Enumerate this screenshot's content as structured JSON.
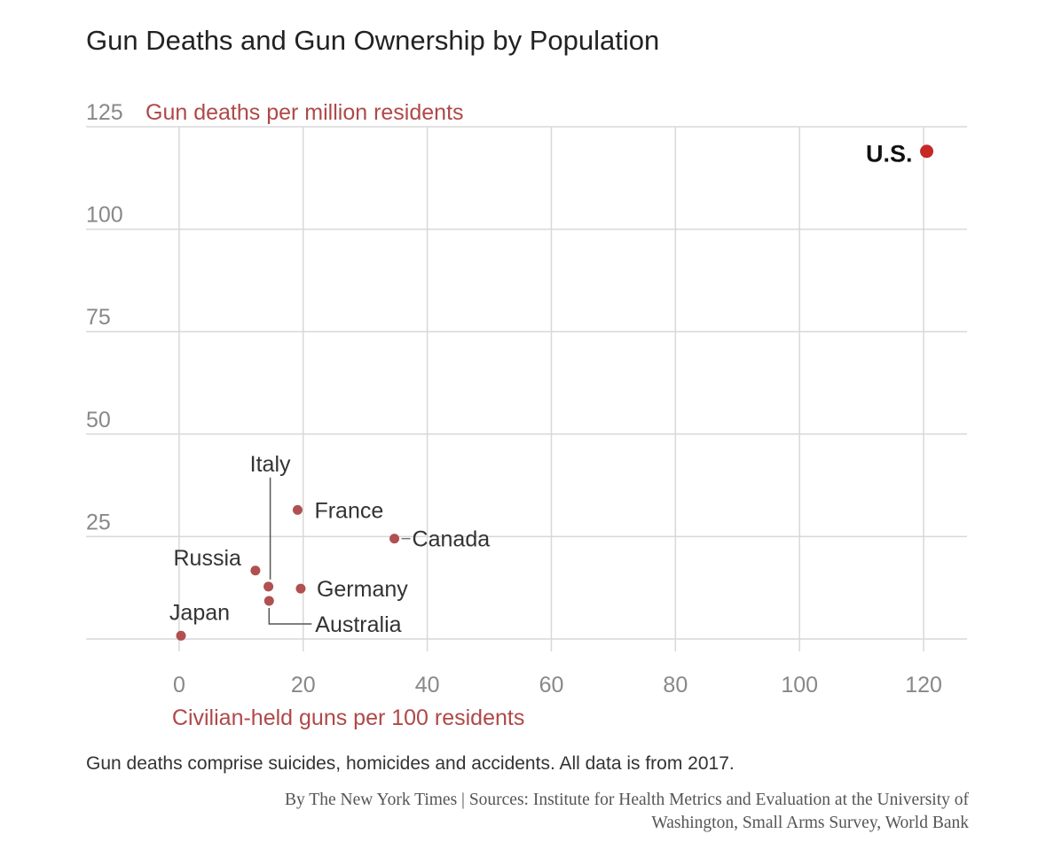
{
  "page": {
    "title": "Gun Deaths and Gun Ownership by Population",
    "note": "Gun deaths comprise suicides, homicides and accidents. All data is from 2017.",
    "source_line1": "By The New York Times | Sources: Institute for Health Metrics and Evaluation at the University of",
    "source_line2": "Washington, Small Arms Survey, World Bank"
  },
  "chart_data": {
    "type": "scatter",
    "title": "Gun Deaths and Gun Ownership by Population",
    "xlabel": "Civilian-held guns per 100 residents",
    "ylabel": "Gun deaths per million residents",
    "xlim": [
      -15,
      127
    ],
    "ylim": [
      0,
      125
    ],
    "xticks": [
      0,
      20,
      40,
      60,
      80,
      100,
      120
    ],
    "yticks": [
      25,
      50,
      75,
      100,
      125
    ],
    "grid": true,
    "colors": {
      "point": "#b05050",
      "us_point": "#c62828",
      "axis_label": "#b04848",
      "tick": "#888888",
      "grid": "#d8d8d8",
      "country_label": "#333333",
      "us_label": "#111111"
    },
    "points": [
      {
        "label": "U.S.",
        "x": 120.5,
        "y": 119,
        "highlight": true
      },
      {
        "label": "Canada",
        "x": 34.7,
        "y": 24.5
      },
      {
        "label": "France",
        "x": 19.1,
        "y": 31.5
      },
      {
        "label": "Germany",
        "x": 19.6,
        "y": 12.3
      },
      {
        "label": "Italy",
        "x": 14.4,
        "y": 12.8
      },
      {
        "label": "Australia",
        "x": 14.5,
        "y": 9.3
      },
      {
        "label": "Russia",
        "x": 12.3,
        "y": 16.7
      },
      {
        "label": "Japan",
        "x": 0.3,
        "y": 0.8
      }
    ]
  }
}
